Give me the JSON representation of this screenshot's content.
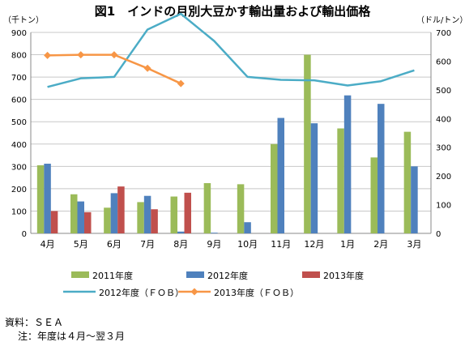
{
  "title": "図1　インドの月別大豆かす輸出量および輸出価格",
  "left_unit": "（千トン）",
  "right_unit": "（ドル/トン）",
  "source": "資料：ＳＥＡ",
  "note": "注：年度は４月～翌３月",
  "colors": {
    "bar2011": "#9bbb59",
    "bar2012": "#4f81bd",
    "bar2013": "#c0504d",
    "line2012": "#4bacc6",
    "line2013": "#f79646",
    "grid": "#c8c8c8",
    "axis": "#888888"
  },
  "chart_data": {
    "type": "bar",
    "title": "図1　インドの月別大豆かす輸出量および輸出価格",
    "categories": [
      "4月",
      "5月",
      "6月",
      "7月",
      "8月",
      "9月",
      "10月",
      "11月",
      "12月",
      "1月",
      "2月",
      "3月"
    ],
    "y_left": {
      "label": "（千トン）",
      "min": 0,
      "max": 900,
      "step": 100,
      "ticks": [
        "0",
        "100",
        "200",
        "300",
        "400",
        "500",
        "600",
        "700",
        "800",
        "900"
      ]
    },
    "y_right": {
      "label": "（ドル/トン）",
      "min": 0,
      "max": 700,
      "step": 100,
      "ticks": [
        "0",
        "100",
        "200",
        "300",
        "400",
        "500",
        "600",
        "700"
      ]
    },
    "grid": true,
    "legend_position": "bottom",
    "series": [
      {
        "name": "2011年度",
        "kind": "bar",
        "axis": "left",
        "color": "#9bbb59",
        "values": [
          305,
          175,
          115,
          140,
          165,
          225,
          220,
          400,
          800,
          470,
          340,
          455
        ]
      },
      {
        "name": "2012年度",
        "kind": "bar",
        "axis": "left",
        "color": "#4f81bd",
        "values": [
          312,
          143,
          180,
          168,
          8,
          3,
          50,
          517,
          493,
          618,
          580,
          300
        ]
      },
      {
        "name": "2013年度",
        "kind": "bar",
        "axis": "left",
        "color": "#c0504d",
        "values": [
          100,
          95,
          210,
          108,
          182,
          null,
          null,
          null,
          null,
          null,
          null,
          null
        ]
      },
      {
        "name": "2012年度（ＦＯＢ）",
        "kind": "line",
        "axis": "right",
        "color": "#4bacc6",
        "values": [
          510,
          540,
          545,
          710,
          765,
          670,
          545,
          535,
          533,
          515,
          530,
          568
        ]
      },
      {
        "name": "2013年度（ＦＯＢ）",
        "kind": "line",
        "axis": "right",
        "color": "#f79646",
        "marker": "diamond",
        "values": [
          620,
          622,
          622,
          575,
          522,
          null,
          null,
          null,
          null,
          null,
          null,
          null
        ]
      }
    ]
  }
}
